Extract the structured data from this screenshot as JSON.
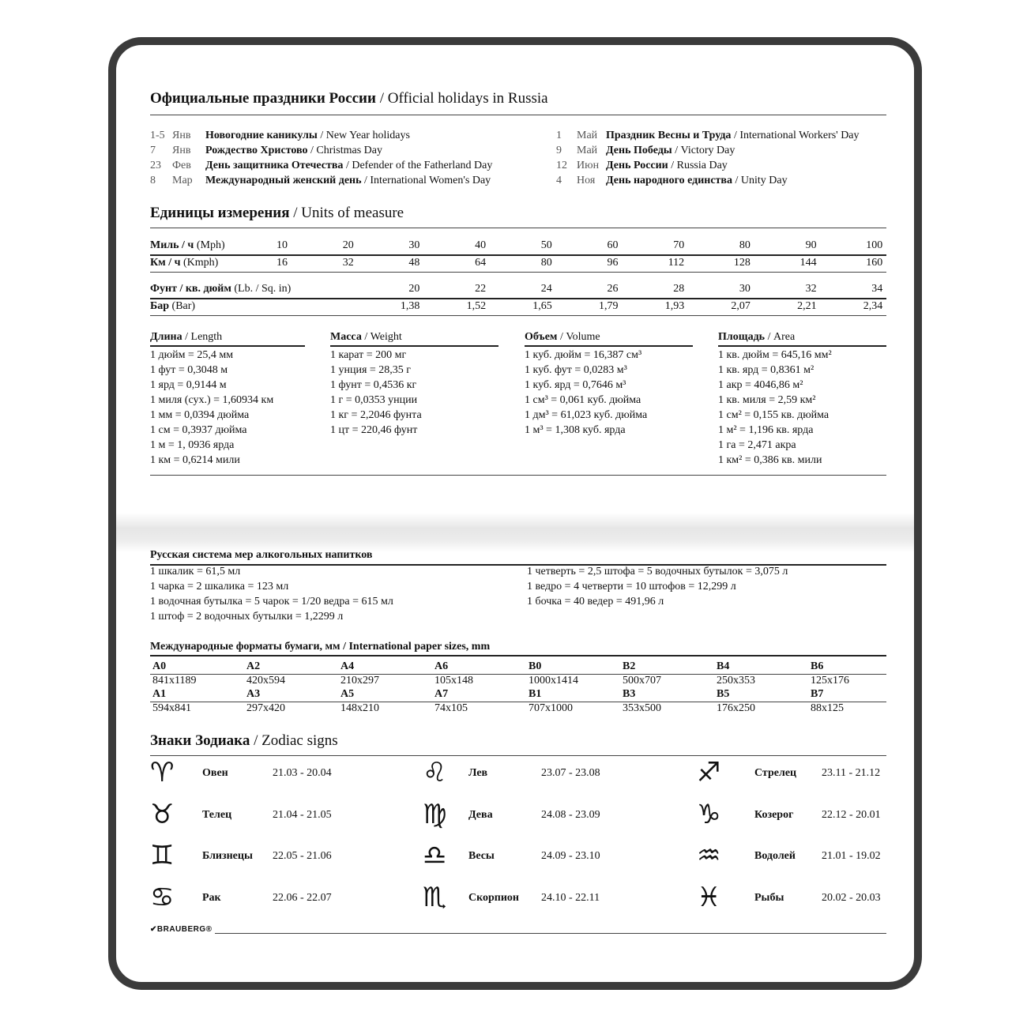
{
  "holidays": {
    "title_ru": "Официальные праздники России",
    "title_en": "/ Official holidays in Russia",
    "left": [
      {
        "day": "1-5",
        "month": "Янв",
        "ru": "Новогодние каникулы",
        "en": "/ New Year holidays"
      },
      {
        "day": "7",
        "month": "Янв",
        "ru": "Рождество Христово",
        "en": "/ Christmas Day"
      },
      {
        "day": "23",
        "month": "Фев",
        "ru": "День защитника Отечества",
        "en": "/ Defender of the Fatherland Day"
      },
      {
        "day": "8",
        "month": "Мар",
        "ru": "Международный женский день",
        "en": "/ International Women's Day"
      }
    ],
    "right": [
      {
        "day": "1",
        "month": "Май",
        "ru": "Праздник Весны и Труда",
        "en": "/ International Workers' Day"
      },
      {
        "day": "9",
        "month": "Май",
        "ru": "День Победы",
        "en": "/ Victory Day"
      },
      {
        "day": "12",
        "month": "Июн",
        "ru": "День России",
        "en": "/ Russia Day"
      },
      {
        "day": "4",
        "month": "Ноя",
        "ru": "День народного единства",
        "en": "/ Unity Day"
      }
    ]
  },
  "units": {
    "title_ru": "Единицы измерения",
    "title_en": "/ Units of measure",
    "speed": [
      {
        "ru": "Миль / ч",
        "en": "(Mph)",
        "values": [
          "10",
          "20",
          "30",
          "40",
          "50",
          "60",
          "70",
          "80",
          "90",
          "100"
        ]
      },
      {
        "ru": "Км / ч",
        "en": "(Kmph)",
        "values": [
          "16",
          "32",
          "48",
          "64",
          "80",
          "96",
          "112",
          "128",
          "144",
          "160"
        ]
      }
    ],
    "pressure": [
      {
        "ru": "Фунт / кв. дюйм",
        "en": "(Lb. / Sq. in)",
        "values": [
          "",
          "",
          "20",
          "22",
          "24",
          "26",
          "28",
          "30",
          "32",
          "34"
        ]
      },
      {
        "ru": "Бар",
        "en": "(Bar)",
        "values": [
          "",
          "",
          "1,38",
          "1,52",
          "1,65",
          "1,79",
          "1,93",
          "2,07",
          "2,21",
          "2,34"
        ]
      }
    ],
    "groups": [
      {
        "ru": "Длина",
        "en": "/ Length",
        "items": [
          "1 дюйм = 25,4 мм",
          "1 фут = 0,3048 м",
          "1 ярд = 0,9144 м",
          "1 миля (сух.) = 1,60934 км",
          "1 мм = 0,0394 дюйма",
          "1 см = 0,3937 дюйма",
          "1 м = 1, 0936 ярда",
          "1 км = 0,6214 мили"
        ]
      },
      {
        "ru": "Масса",
        "en": "/ Weight",
        "items": [
          "1 карат = 200 мг",
          "1 унция = 28,35 г",
          "1 фунт = 0,4536 кг",
          "1 г = 0,0353 унции",
          "1 кг = 2,2046 фунта",
          "1 цт = 220,46 фунт"
        ]
      },
      {
        "ru": "Объем",
        "en": "/ Volume",
        "items": [
          "1 куб. дюйм = 16,387 см³",
          "1 куб. фут = 0,0283 м³",
          "1 куб. ярд = 0,7646 м³",
          "1 см³ = 0,061 куб. дюйма",
          "1 дм³ = 61,023 куб. дюйма",
          "1 м³ = 1,308 куб. ярда"
        ]
      },
      {
        "ru": "Площадь",
        "en": "/ Area",
        "items": [
          "1 кв. дюйм = 645,16 мм²",
          "1 кв. ярд = 0,8361 м²",
          "1 акр = 4046,86 м²",
          "1 кв. миля = 2,59 км²",
          "1 см² = 0,155 кв. дюйма",
          "1 м² = 1,196 кв. ярда",
          "1 га = 2,471 акра",
          "1 км² = 0,386 кв. мили"
        ]
      }
    ]
  },
  "alcohol": {
    "title": "Русская система мер алкогольных напитков",
    "left": [
      "1 шкалик = 61,5 мл",
      "1 чарка = 2 шкалика = 123 мл",
      "1 водочная бутылка = 5 чарок = 1/20 ведра = 615 мл",
      "1 штоф = 2 водочных бутылки = 1,2299 л"
    ],
    "right": [
      "1 четверть = 2,5 штофа = 5 водочных бутылок =  3,075 л",
      "1 ведро = 4 четверти = 10 штофов = 12,299 л",
      "1 бочка = 40 ведер = 491,96 л"
    ]
  },
  "paper": {
    "title_ru": "Международные форматы бумаги, мм",
    "title_en": "/ International paper sizes, mm",
    "row1": [
      [
        "A0",
        "841x1189"
      ],
      [
        "A2",
        "420x594"
      ],
      [
        "A4",
        "210x297"
      ],
      [
        "A6",
        "105x148"
      ],
      [
        "B0",
        "1000x1414"
      ],
      [
        "B2",
        "500x707"
      ],
      [
        "B4",
        "250x353"
      ],
      [
        "B6",
        "125x176"
      ]
    ],
    "row2": [
      [
        "A1",
        "594x841"
      ],
      [
        "A3",
        "297x420"
      ],
      [
        "A5",
        "148x210"
      ],
      [
        "A7",
        "74x105"
      ],
      [
        "B1",
        "707x1000"
      ],
      [
        "B3",
        "353x500"
      ],
      [
        "B5",
        "176x250"
      ],
      [
        "B7",
        "88x125"
      ]
    ]
  },
  "zodiac": {
    "title_ru": "Знаки Зодиака",
    "title_en": "/ Zodiac signs",
    "columns": [
      [
        {
          "icon": "aries-icon",
          "glyph": "♈",
          "name": "Овен",
          "dates": "21.03 - 20.04"
        },
        {
          "icon": "taurus-icon",
          "glyph": "♉",
          "name": "Телец",
          "dates": "21.04 - 21.05"
        },
        {
          "icon": "gemini-icon",
          "glyph": "♊",
          "name": "Близнецы",
          "dates": "22.05 - 21.06"
        },
        {
          "icon": "cancer-icon",
          "glyph": "♋",
          "name": "Рак",
          "dates": "22.06 - 22.07"
        }
      ],
      [
        {
          "icon": "leo-icon",
          "glyph": "♌",
          "name": "Лев",
          "dates": "23.07 - 23.08"
        },
        {
          "icon": "virgo-icon",
          "glyph": "♍",
          "name": "Дева",
          "dates": "24.08 - 23.09"
        },
        {
          "icon": "libra-icon",
          "glyph": "♎",
          "name": "Весы",
          "dates": "24.09 - 23.10"
        },
        {
          "icon": "scorpio-icon",
          "glyph": "♏",
          "name": "Скорпион",
          "dates": "24.10 - 22.11"
        }
      ],
      [
        {
          "icon": "sagittarius-icon",
          "glyph": "♐",
          "name": "Стрелец",
          "dates": "23.11 - 21.12"
        },
        {
          "icon": "capricorn-icon",
          "glyph": "♑",
          "name": "Козерог",
          "dates": "22.12 - 20.01"
        },
        {
          "icon": "aquarius-icon",
          "glyph": "♒",
          "name": "Водолей",
          "dates": "21.01 - 19.02"
        },
        {
          "icon": "pisces-icon",
          "glyph": "♓",
          "name": "Рыбы",
          "dates": "20.02 - 20.03"
        }
      ]
    ]
  },
  "brand": {
    "logo": "BRAUBERG"
  },
  "colors": {
    "frame": "#3b3b3b",
    "text": "#111111"
  }
}
